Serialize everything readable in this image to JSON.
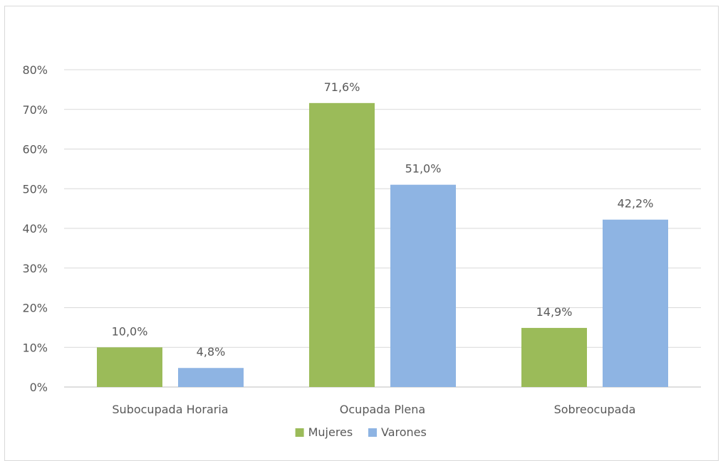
{
  "chart_data": {
    "type": "bar",
    "categories": [
      "Subocupada Horaria",
      "Ocupada Plena",
      "Sobreocupada"
    ],
    "series": [
      {
        "name": "Mujeres",
        "values": [
          10.0,
          71.6,
          14.9
        ],
        "labels": [
          "10,0%",
          "71,6%",
          "14,9%"
        ],
        "color": "#9bbb59"
      },
      {
        "name": "Varones",
        "values": [
          4.8,
          51.0,
          42.2
        ],
        "labels": [
          "4,8%",
          "51,0%",
          "42,2%"
        ],
        "color": "#8eb4e3"
      }
    ],
    "yticks": [
      "0%",
      "10%",
      "20%",
      "30%",
      "40%",
      "50%",
      "60%",
      "70%",
      "80%"
    ],
    "ylim": [
      0,
      80
    ],
    "grid": true,
    "legend": "bottom"
  },
  "colors": {
    "gridline": "#d9d9d9",
    "axis": "#bfbfbf"
  }
}
